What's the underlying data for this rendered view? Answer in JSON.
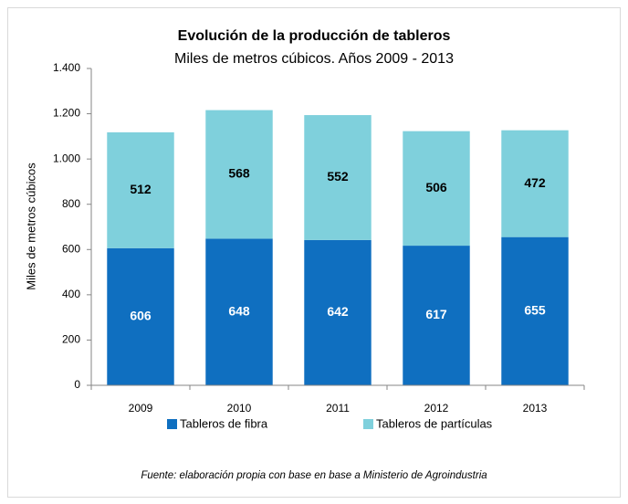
{
  "chart_data": {
    "type": "stacked_bar",
    "title": "Evolución de la producción de tableros",
    "subtitle": "Miles de metros cúbicos. Años 2009 - 2013",
    "y_label": "Miles de metros cúbicos",
    "categories": [
      "2009",
      "2010",
      "2011",
      "2012",
      "2013"
    ],
    "series": [
      {
        "name": "Tableros de fibra",
        "color": "#0f6fc0",
        "values": [
          606,
          648,
          642,
          617,
          655
        ]
      },
      {
        "name": "Tableros de partículas",
        "color": "#7fd0dc",
        "values": [
          512,
          568,
          552,
          506,
          472
        ]
      }
    ],
    "ylim": [
      0,
      1400
    ],
    "yticks": [
      0,
      200,
      400,
      600,
      800,
      {
        "value": 1000,
        "label": "1.000"
      },
      {
        "value": 1200,
        "label": "1.200"
      },
      {
        "value": 1400,
        "label": "1.400"
      }
    ],
    "grid": false,
    "legend": "bottom",
    "source": "Fuente: elaboración propia con base en base a Ministerio de Agroindustria"
  }
}
